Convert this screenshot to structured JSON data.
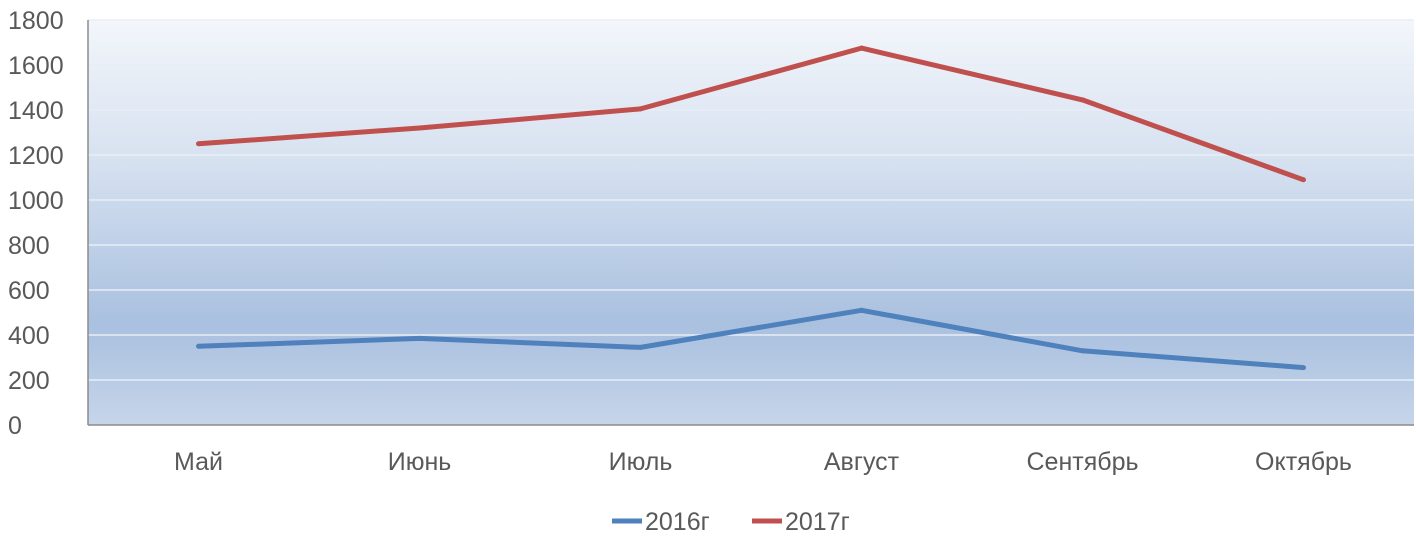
{
  "chart_data": {
    "type": "line",
    "categories": [
      "Май",
      "Июнь",
      "Июль",
      "Август",
      "Сентябрь",
      "Октябрь"
    ],
    "series": [
      {
        "name": "2016г",
        "values": [
          350,
          385,
          345,
          510,
          330,
          255
        ],
        "color": "#4f81bd"
      },
      {
        "name": "2017г",
        "values": [
          1250,
          1320,
          1405,
          1675,
          1445,
          1090
        ],
        "color": "#c0504d"
      }
    ],
    "yticks": [
      "0",
      "200",
      "400",
      "600",
      "800",
      "1000",
      "1200",
      "1400",
      "1600",
      "1800"
    ],
    "ylim": [
      0,
      1800
    ],
    "grid": true,
    "legend_position": "bottom",
    "plot_background": "gradient blue"
  }
}
